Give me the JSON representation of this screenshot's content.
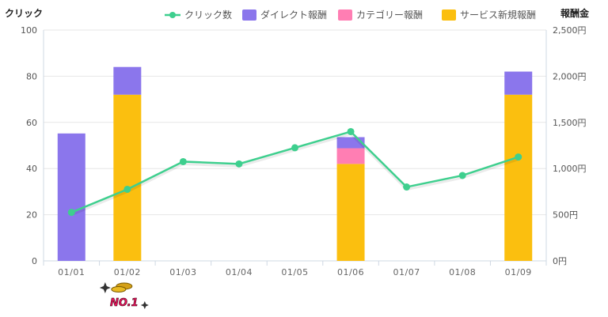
{
  "colors": {
    "clicks": "#3ecf8e",
    "direct": "#8b76ec",
    "category": "#ff7eb3",
    "service": "#fbbf0f",
    "grid": "#e6e6e6",
    "axis": "#cfd8e3"
  },
  "badge": {
    "text": "NO.1",
    "icon": "gold-coins-icon"
  },
  "chart_data": {
    "type": "bar",
    "categories": [
      "01/01",
      "01/02",
      "01/03",
      "01/04",
      "01/05",
      "01/06",
      "01/07",
      "01/08",
      "01/09"
    ],
    "left_axis": {
      "label": "クリック",
      "min": 0,
      "max": 100,
      "ticks": [
        "0",
        "20",
        "40",
        "60",
        "80",
        "100"
      ]
    },
    "right_axis": {
      "label": "報酬金",
      "min": 0,
      "max": 2500,
      "ticks": [
        "0円",
        "500円",
        "1,000円",
        "1,500円",
        "2,000円",
        "2,500円"
      ]
    },
    "grid": true,
    "legend_position": "top-right",
    "stacked_bar_series": [
      {
        "name": "ダイレクト報酬",
        "axis": "right",
        "values": [
          1380,
          300,
          0,
          0,
          0,
          120,
          0,
          0,
          250
        ]
      },
      {
        "name": "カテゴリー報酬",
        "axis": "right",
        "values": [
          0,
          0,
          0,
          0,
          0,
          170,
          0,
          0,
          0
        ]
      },
      {
        "name": "サービス新規報酬",
        "axis": "right",
        "values": [
          0,
          1800,
          0,
          0,
          0,
          1050,
          0,
          0,
          1800
        ]
      }
    ],
    "line_series": [
      {
        "name": "クリック数",
        "axis": "left",
        "values": [
          21,
          31,
          43,
          42,
          49,
          56,
          32,
          37,
          45
        ]
      }
    ]
  }
}
